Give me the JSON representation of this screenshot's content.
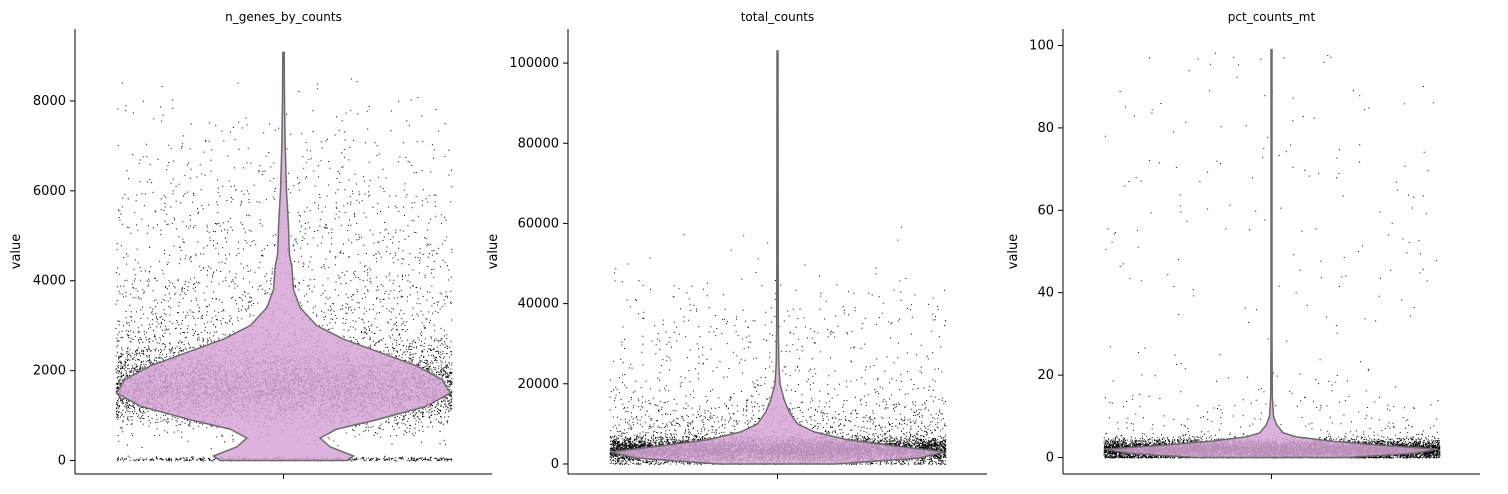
{
  "chart_data": [
    {
      "type": "violin",
      "title": "n_genes_by_counts",
      "ylabel": "value",
      "ylim": [
        -300,
        9600
      ],
      "yticks": [
        0,
        2000,
        4000,
        6000,
        8000
      ],
      "ytick_labels": [
        "0",
        "2000",
        "4000",
        "6000",
        "8000"
      ],
      "data_max": 9080,
      "colors": {
        "fill": "#d7a6d7",
        "edge": "#6b6b6b",
        "points": "#000000"
      },
      "density_profile": [
        [
          0,
          0.38
        ],
        [
          100,
          0.42
        ],
        [
          300,
          0.28
        ],
        [
          500,
          0.22
        ],
        [
          700,
          0.32
        ],
        [
          900,
          0.55
        ],
        [
          1200,
          0.85
        ],
        [
          1500,
          1.0
        ],
        [
          1800,
          0.95
        ],
        [
          2100,
          0.8
        ],
        [
          2400,
          0.58
        ],
        [
          2700,
          0.36
        ],
        [
          3000,
          0.2
        ],
        [
          3400,
          0.1
        ],
        [
          3800,
          0.06
        ],
        [
          4300,
          0.05
        ],
        [
          4600,
          0.035
        ],
        [
          5200,
          0.03
        ],
        [
          6000,
          0.018
        ],
        [
          7000,
          0.01
        ],
        [
          8000,
          0.006
        ],
        [
          9080,
          0.004
        ]
      ],
      "scatter_distribution": {
        "n": 9000,
        "components": [
          {
            "weight": 0.74,
            "mean": 1650,
            "sd": 420
          },
          {
            "weight": 0.12,
            "mean": 2600,
            "sd": 700
          },
          {
            "weight": 0.09,
            "mean": 4200,
            "sd": 1100
          },
          {
            "weight": 0.05,
            "mean": 6000,
            "sd": 1300
          }
        ],
        "zero_cluster": {
          "weight": 0.06,
          "mean": 40,
          "sd": 25
        }
      }
    },
    {
      "type": "violin",
      "title": "total_counts",
      "ylabel": "value",
      "ylim": [
        -2500,
        108500
      ],
      "yticks": [
        0,
        20000,
        40000,
        60000,
        80000,
        100000
      ],
      "ytick_labels": [
        "0",
        "20000",
        "40000",
        "60000",
        "80000",
        "100000"
      ],
      "data_max": 103000,
      "colors": {
        "fill": "#d7a6d7",
        "edge": "#6b6b6b",
        "points": "#000000"
      },
      "density_profile": [
        [
          0,
          0.35
        ],
        [
          1500,
          0.85
        ],
        [
          3000,
          1.0
        ],
        [
          4500,
          0.7
        ],
        [
          6000,
          0.42
        ],
        [
          8000,
          0.22
        ],
        [
          10000,
          0.12
        ],
        [
          13000,
          0.07
        ],
        [
          16000,
          0.04
        ],
        [
          20000,
          0.015
        ],
        [
          25000,
          0.008
        ],
        [
          35000,
          0.005
        ],
        [
          50000,
          0.004
        ],
        [
          103000,
          0.003
        ]
      ],
      "scatter_distribution": {
        "n": 9000,
        "components": [
          {
            "weight": 0.82,
            "mean": 3500,
            "sd": 1600
          },
          {
            "weight": 0.12,
            "mean": 9000,
            "sd": 4500
          },
          {
            "weight": 0.06,
            "mean": 25000,
            "sd": 12000
          }
        ],
        "zero_cluster": {
          "weight": 0.0,
          "mean": 500,
          "sd": 200
        }
      }
    },
    {
      "type": "violin",
      "title": "pct_counts_mt",
      "ylabel": "value",
      "ylim": [
        -4,
        104
      ],
      "yticks": [
        0,
        20,
        40,
        60,
        80,
        100
      ],
      "ytick_labels": [
        "0",
        "20",
        "40",
        "60",
        "80",
        "100"
      ],
      "data_max": 99,
      "colors": {
        "fill": "#d7a6d7",
        "edge": "#6b6b6b",
        "points": "#000000"
      },
      "density_profile": [
        [
          0,
          0.45
        ],
        [
          1,
          0.85
        ],
        [
          2,
          1.0
        ],
        [
          3,
          0.65
        ],
        [
          4,
          0.35
        ],
        [
          5,
          0.15
        ],
        [
          6,
          0.07
        ],
        [
          8,
          0.03
        ],
        [
          10,
          0.012
        ],
        [
          15,
          0.005
        ],
        [
          30,
          0.003
        ],
        [
          60,
          0.003
        ],
        [
          99,
          0.003
        ]
      ],
      "scatter_distribution": {
        "n": 9000,
        "components": [
          {
            "weight": 0.95,
            "mean": 2.0,
            "sd": 1.2
          },
          {
            "weight": 0.03,
            "mean": 8,
            "sd": 6
          },
          {
            "weight": 0.02,
            "mean": 60,
            "sd": 30
          }
        ],
        "zero_cluster": {
          "weight": 0.0,
          "mean": 0.2,
          "sd": 0.1
        }
      }
    }
  ]
}
